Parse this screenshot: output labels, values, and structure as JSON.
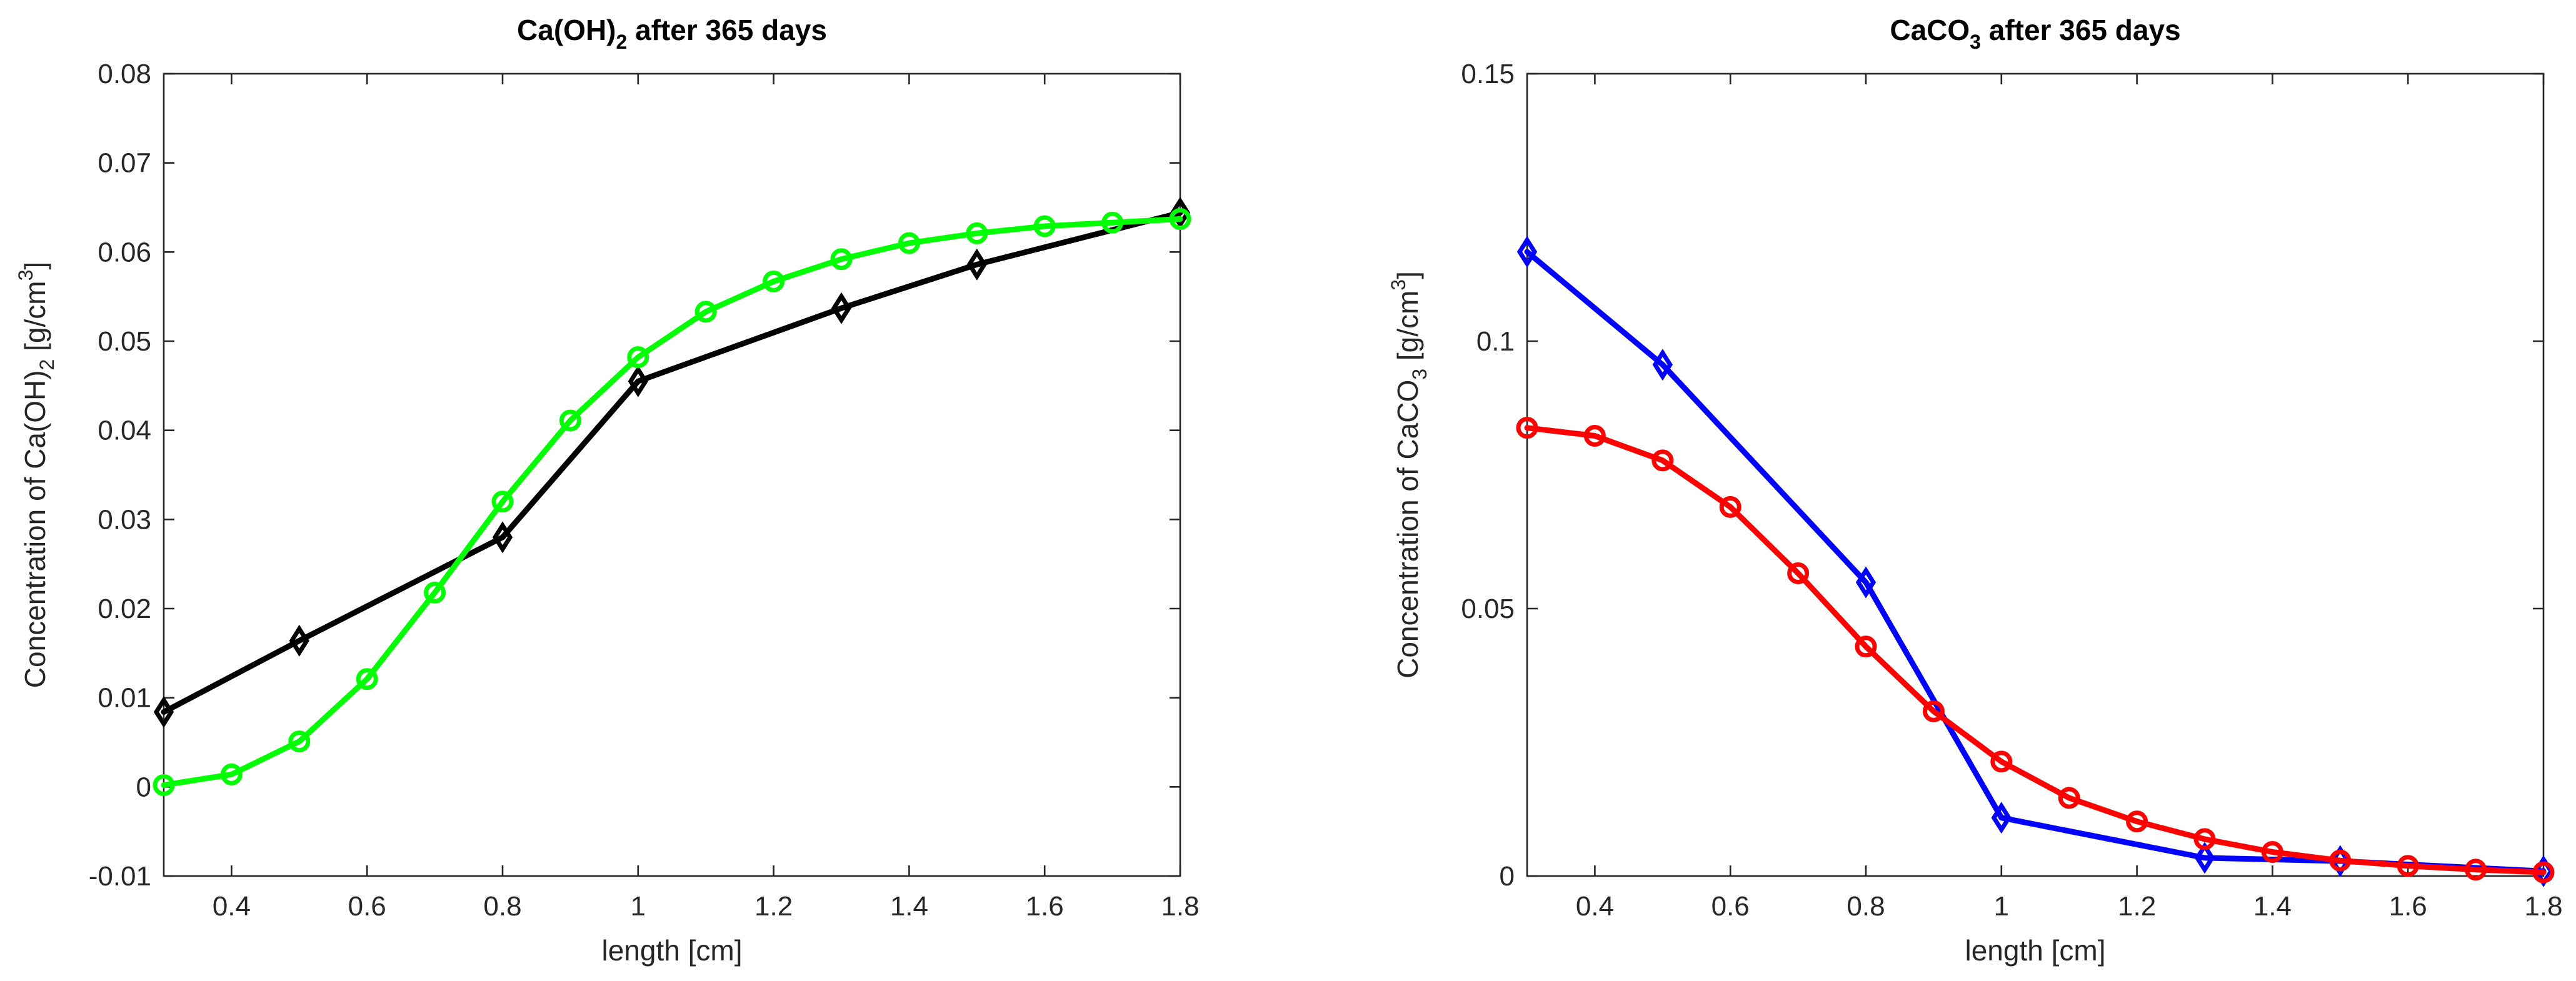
{
  "chart_data": [
    {
      "type": "line",
      "id": "left",
      "title": {
        "prefix": "Ca(OH)",
        "sub": "2",
        "suffix": " after 365 days"
      },
      "xlabel": "length [cm]",
      "ylabel": {
        "prefix": "Concentration of Ca(OH)",
        "sub": "2",
        "mid": " [g/cm",
        "sup": "3",
        "suffix": "]"
      },
      "xlim": [
        0.3,
        1.8
      ],
      "ylim": [
        -0.01,
        0.08
      ],
      "xticks": [
        0.4,
        0.6,
        0.8,
        1,
        1.2,
        1.4,
        1.6,
        1.8
      ],
      "xtick_labels": [
        "0.4",
        "0.6",
        "0.8",
        "1",
        "1.2",
        "1.4",
        "1.6",
        "1.8"
      ],
      "yticks": [
        -0.01,
        0,
        0.01,
        0.02,
        0.03,
        0.04,
        0.05,
        0.06,
        0.07,
        0.08
      ],
      "ytick_labels": [
        "-0.01",
        "0",
        "0.01",
        "0.02",
        "0.03",
        "0.04",
        "0.05",
        "0.06",
        "0.07",
        "0.08"
      ],
      "series": [
        {
          "name": "black-diamond",
          "color": "#000000",
          "marker": "diamond",
          "x": [
            0.3,
            0.5,
            0.8,
            1.0,
            1.3,
            1.5,
            1.8
          ],
          "y": [
            0.0084,
            0.0164,
            0.028,
            0.0455,
            0.0537,
            0.0586,
            0.0644
          ]
        },
        {
          "name": "green-circle",
          "color": "#00ff00",
          "marker": "circle",
          "x": [
            0.3,
            0.4,
            0.5,
            0.6,
            0.7,
            0.8,
            0.9,
            1.0,
            1.1,
            1.2,
            1.3,
            1.4,
            1.5,
            1.6,
            1.7,
            1.8
          ],
          "y": [
            0.0002,
            0.0014,
            0.0051,
            0.0121,
            0.0218,
            0.032,
            0.0411,
            0.0482,
            0.0533,
            0.0567,
            0.0592,
            0.061,
            0.0621,
            0.0629,
            0.0633,
            0.0637
          ]
        }
      ]
    },
    {
      "type": "line",
      "id": "right",
      "title": {
        "prefix": "CaCO",
        "sub": "3",
        "suffix": " after 365 days"
      },
      "xlabel": "length [cm]",
      "ylabel": {
        "prefix": "Concentration of CaCO",
        "sub": "3",
        "mid": " [g/cm",
        "sup": "3",
        "suffix": "]"
      },
      "xlim": [
        0.3,
        1.8
      ],
      "ylim": [
        0,
        0.15
      ],
      "xticks": [
        0.4,
        0.6,
        0.8,
        1,
        1.2,
        1.4,
        1.6,
        1.8
      ],
      "xtick_labels": [
        "0.4",
        "0.6",
        "0.8",
        "1",
        "1.2",
        "1.4",
        "1.6",
        "1.8"
      ],
      "yticks": [
        0,
        0.05,
        0.1,
        0.15
      ],
      "ytick_labels": [
        "0",
        "0.05",
        "0.1",
        "0.15"
      ],
      "series": [
        {
          "name": "blue-diamond",
          "color": "#0000ff",
          "marker": "diamond",
          "x": [
            0.3,
            0.5,
            0.8,
            1.0,
            1.3,
            1.5,
            1.8
          ],
          "y": [
            0.1167,
            0.0956,
            0.0549,
            0.0109,
            0.0034,
            0.0028,
            0.0009
          ]
        },
        {
          "name": "red-circle",
          "color": "#ff0000",
          "marker": "circle",
          "x": [
            0.3,
            0.4,
            0.5,
            0.6,
            0.7,
            0.8,
            0.9,
            1.0,
            1.1,
            1.2,
            1.3,
            1.4,
            1.5,
            1.6,
            1.7,
            1.8
          ],
          "y": [
            0.0838,
            0.0823,
            0.0777,
            0.069,
            0.0566,
            0.0429,
            0.0308,
            0.0214,
            0.0146,
            0.0102,
            0.0069,
            0.0045,
            0.0029,
            0.0019,
            0.0012,
            0.0007
          ]
        }
      ]
    }
  ]
}
